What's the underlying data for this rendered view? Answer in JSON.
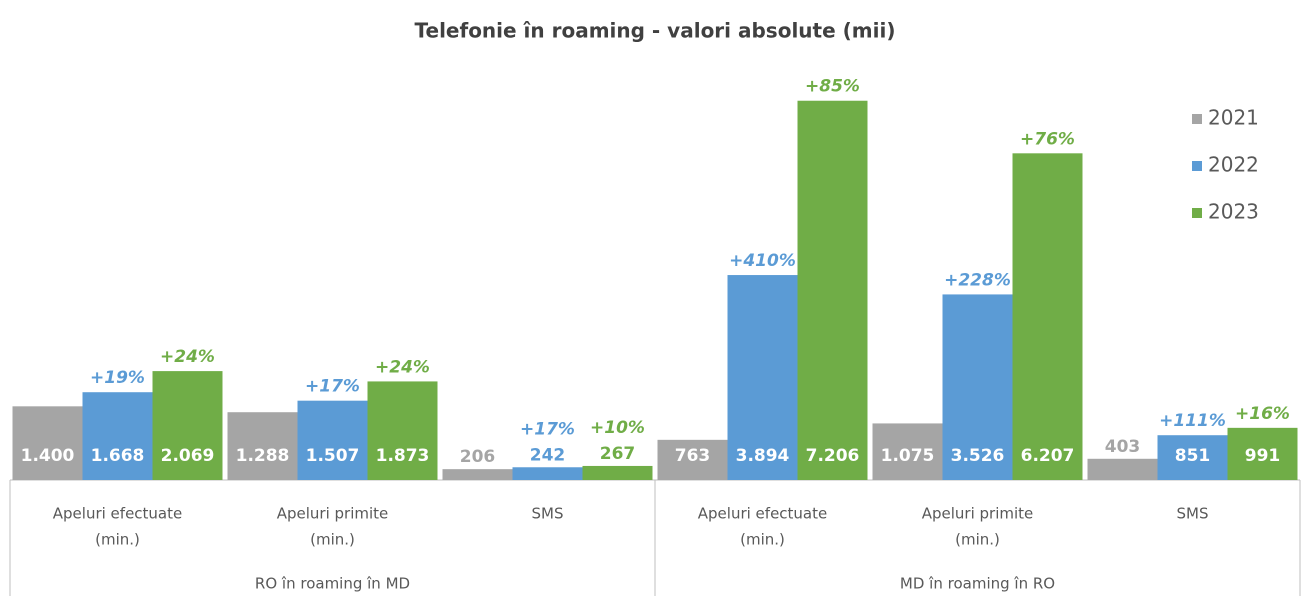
{
  "chart_data": {
    "type": "bar",
    "title": "Telefonie în roaming - valori absolute (mii)",
    "categories": [
      [
        "Apeluri efectuate",
        "(min.)"
      ],
      [
        "Apeluri primite",
        "(min.)"
      ],
      [
        "SMS"
      ],
      [
        "Apeluri efectuate",
        "(min.)"
      ],
      [
        "Apeluri primite",
        "(min.)"
      ],
      [
        "SMS"
      ]
    ],
    "group_labels": [
      "RO în roaming în MD",
      "MD în roaming în RO"
    ],
    "series": [
      {
        "name": "2021",
        "color": "#a5a5a5",
        "values": [
          1400,
          1288,
          206,
          763,
          1075,
          403
        ],
        "value_labels": [
          "1.400",
          "1.288",
          "206",
          "763",
          "1.075",
          "403"
        ]
      },
      {
        "name": "2022",
        "color": "#5b9bd5",
        "values": [
          1668,
          1507,
          242,
          3894,
          3526,
          851
        ],
        "value_labels": [
          "1.668",
          "1.507",
          "242",
          "3.894",
          "3.526",
          "851"
        ],
        "change_labels": [
          "+19%",
          "+17%",
          "+17%",
          "+410%",
          "+228%",
          "+111%"
        ]
      },
      {
        "name": "2023",
        "color": "#70ad47",
        "values": [
          2069,
          1873,
          267,
          7206,
          6207,
          991
        ],
        "value_labels": [
          "2.069",
          "1.873",
          "267",
          "7.206",
          "6.207",
          "991"
        ],
        "change_labels": [
          "+24%",
          "+24%",
          "+10%",
          "+85%",
          "+76%",
          "+16%"
        ]
      }
    ],
    "ylim": [
      0,
      7600
    ],
    "legend": "right"
  }
}
